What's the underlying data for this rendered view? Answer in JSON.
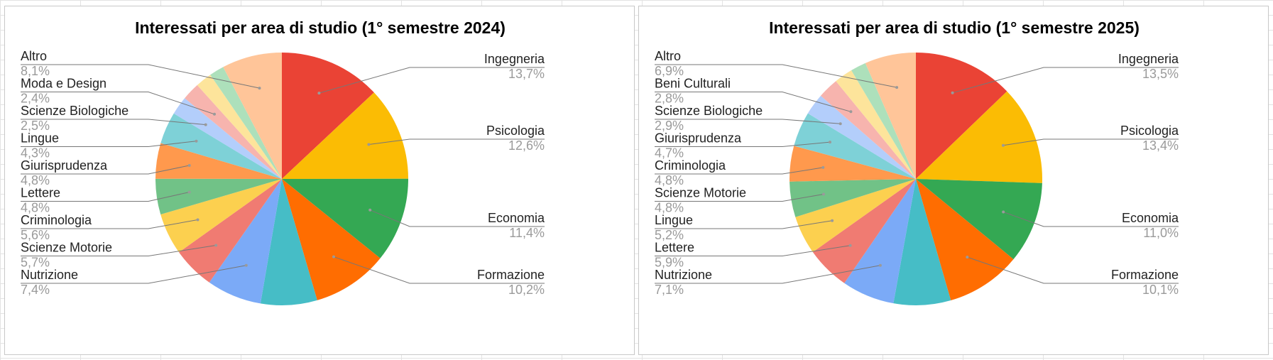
{
  "chart_data": [
    {
      "type": "pie",
      "title": "Interessati per area di studio (1° semestre 2024)",
      "legend": "none",
      "slices": [
        {
          "label": "Ingegneria",
          "value": 13.7,
          "value_label": "13,7%",
          "color": "#ea4335"
        },
        {
          "label": "Psicologia",
          "value": 12.6,
          "value_label": "12,6%",
          "color": "#fbbc04"
        },
        {
          "label": "Economia",
          "value": 11.4,
          "value_label": "11,4%",
          "color": "#34a853"
        },
        {
          "label": "Formazione",
          "value": 10.2,
          "value_label": "10,2%",
          "color": "#ff6d01"
        },
        {
          "label": "",
          "value": 7.6,
          "value_label": "",
          "color": "#46bdc6"
        },
        {
          "label": "Nutrizione",
          "value": 7.4,
          "value_label": "7,4%",
          "color": "#7baaf7"
        },
        {
          "label": "Scienze Motorie",
          "value": 5.7,
          "value_label": "5,7%",
          "color": "#f07b72"
        },
        {
          "label": "Criminologia",
          "value": 5.6,
          "value_label": "5,6%",
          "color": "#fcd04f"
        },
        {
          "label": "Lettere",
          "value": 4.8,
          "value_label": "4,8%",
          "color": "#71c287"
        },
        {
          "label": "Giurisprudenza",
          "value": 4.8,
          "value_label": "4,8%",
          "color": "#ff994d"
        },
        {
          "label": "Lingue",
          "value": 4.3,
          "value_label": "4,3%",
          "color": "#7ed1d7"
        },
        {
          "label": "Scienze Biologiche",
          "value": 2.5,
          "value_label": "2,5%",
          "color": "#b3cefb"
        },
        {
          "label": "Moda e Design",
          "value": 2.4,
          "value_label": "2,4%",
          "color": "#f7b4ae"
        },
        {
          "label": "",
          "value": 2.2,
          "value_label": "",
          "color": "#fde49b"
        },
        {
          "label": "",
          "value": 2.0,
          "value_label": "",
          "color": "#ade0bb"
        },
        {
          "label": "Altro",
          "value": 8.1,
          "value_label": "8,1%",
          "color": "#ffc599"
        }
      ]
    },
    {
      "type": "pie",
      "title": "Interessati per area di studio (1° semestre 2025)",
      "legend": "none",
      "slices": [
        {
          "label": "Ingegneria",
          "value": 13.5,
          "value_label": "13,5%",
          "color": "#ea4335"
        },
        {
          "label": "Psicologia",
          "value": 13.4,
          "value_label": "13,4%",
          "color": "#fbbc04"
        },
        {
          "label": "Economia",
          "value": 11.0,
          "value_label": "11,0%",
          "color": "#34a853"
        },
        {
          "label": "Formazione",
          "value": 10.1,
          "value_label": "10,1%",
          "color": "#ff6d01"
        },
        {
          "label": "",
          "value": 7.7,
          "value_label": "",
          "color": "#46bdc6"
        },
        {
          "label": "Nutrizione",
          "value": 7.1,
          "value_label": "7,1%",
          "color": "#7baaf7"
        },
        {
          "label": "Lettere",
          "value": 5.9,
          "value_label": "5,9%",
          "color": "#f07b72"
        },
        {
          "label": "Lingue",
          "value": 5.2,
          "value_label": "5,2%",
          "color": "#fcd04f"
        },
        {
          "label": "Scienze Motorie",
          "value": 4.8,
          "value_label": "4,8%",
          "color": "#71c287"
        },
        {
          "label": "Criminologia",
          "value": 4.8,
          "value_label": "4,8%",
          "color": "#ff994d"
        },
        {
          "label": "Giurisprudenza",
          "value": 4.7,
          "value_label": "4,7%",
          "color": "#7ed1d7"
        },
        {
          "label": "Scienze Biologiche",
          "value": 2.9,
          "value_label": "2,9%",
          "color": "#b3cefb"
        },
        {
          "label": "Beni Culturali",
          "value": 2.8,
          "value_label": "2,8%",
          "color": "#f7b4ae"
        },
        {
          "label": "",
          "value": 2.5,
          "value_label": "",
          "color": "#fde49b"
        },
        {
          "label": "",
          "value": 2.1,
          "value_label": "",
          "color": "#ade0bb"
        },
        {
          "label": "Altro",
          "value": 6.9,
          "value_label": "6,9%",
          "color": "#ffc599"
        }
      ]
    }
  ]
}
